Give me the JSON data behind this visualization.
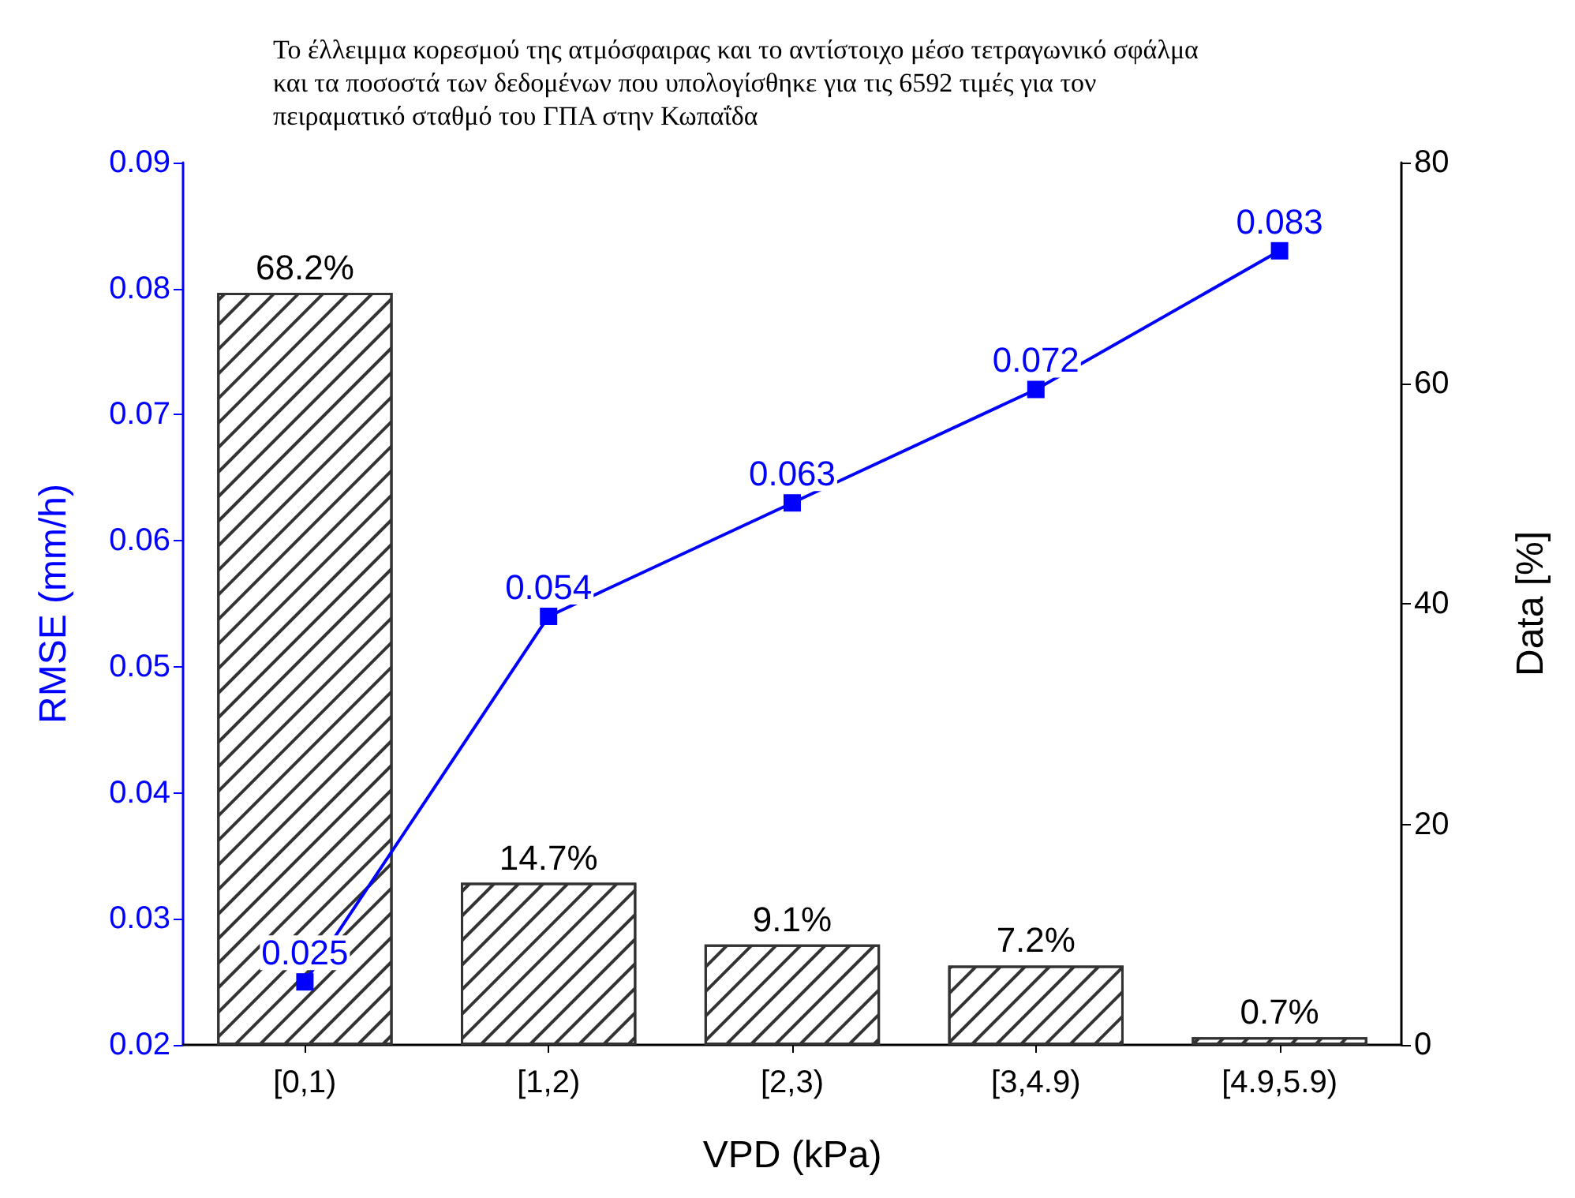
{
  "chart_data": {
    "type": "bar",
    "title": "Το έλλειμμα κορεσμού της ατμόσφαιρας και το αντίστοιχο μέσο τετραγωνικό σφάλμα\nκαι τα ποσοστά των δεδομένων που υπολογίσθηκε για τις 6592 τιμές για τον\nπειραματικό σταθμό του ΓΠΑ στην Κωπαΐδα",
    "xlabel": "VPD (kPa)",
    "ylabel": "RMSE (mm/h)",
    "y2label": "Data [%]",
    "categories": [
      "[0,1)",
      "[1,2)",
      "[2,3)",
      "[3,4.9)",
      "[4.9,5.9)"
    ],
    "series": [
      {
        "axis": "y2",
        "color": "#333333",
        "values": [
          68.2,
          14.7,
          9.1,
          7.2,
          0.7
        ],
        "value_labels": [
          "68.2%",
          "14.7%",
          "9.1%",
          "7.2%",
          "0.7%"
        ]
      },
      {
        "type": "line",
        "axis": "y",
        "color": "#0000ff",
        "values": [
          0.025,
          0.054,
          0.063,
          0.072,
          0.083
        ],
        "value_labels": [
          "0.025",
          "0.054",
          "0.063",
          "0.072",
          "0.083"
        ]
      }
    ],
    "ylim": [
      0.02,
      0.09
    ],
    "yticks": [
      0.02,
      0.03,
      0.04,
      0.05,
      0.06,
      0.07,
      0.08,
      0.09
    ],
    "y2lim": [
      0,
      80
    ],
    "y2ticks": [
      0,
      20,
      40,
      60,
      80
    ],
    "marker": "square",
    "line_style": "solid",
    "grid": false
  }
}
